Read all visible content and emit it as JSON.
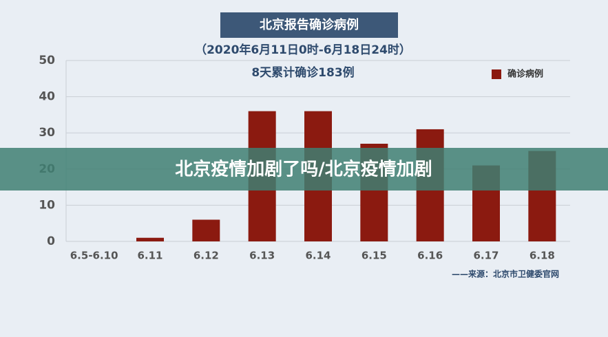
{
  "chart_data": {
    "type": "bar",
    "title": "北京报告确诊病例",
    "subtitle": "（2020年6月11日0时-6月18日24时）",
    "annotation": "8天累计确诊183例",
    "source": "——来源：北京市卫健委官网",
    "categories": [
      "6.5-6.10",
      "6.11",
      "6.12",
      "6.13",
      "6.14",
      "6.15",
      "6.16",
      "6.17",
      "6.18"
    ],
    "series": [
      {
        "name": "确诊病例",
        "color": "#8b1a10",
        "values": [
          0,
          1,
          6,
          36,
          36,
          27,
          31,
          21,
          25
        ]
      }
    ],
    "ylim": [
      0,
      50
    ],
    "yticks": [
      0,
      10,
      20,
      30,
      40,
      50
    ],
    "grid": true,
    "legend": "top-right"
  },
  "banner": {
    "text": "北京疫情加剧了吗/北京疫情加剧"
  }
}
